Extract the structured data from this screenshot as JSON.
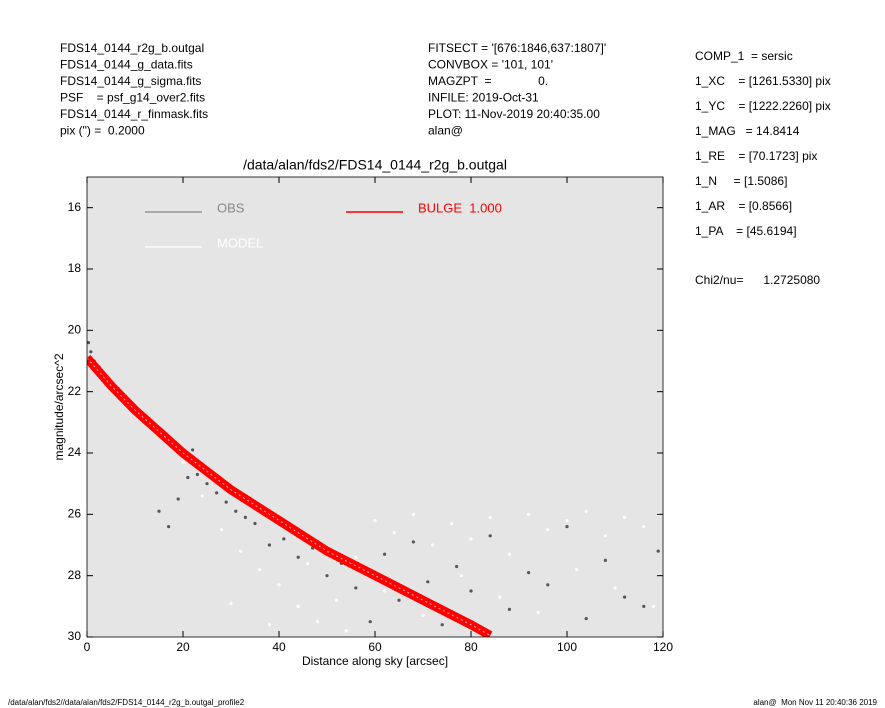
{
  "header": {
    "left": [
      "FDS14_0144_r2g_b.outgal",
      "FDS14_0144_g_data.fits",
      "FDS14_0144_g_sigma.fits",
      "PSF    = psf_g14_over2.fits",
      "FDS14_0144_r_finmask.fits",
      "pix (\") =  0.2000"
    ],
    "middle": [
      "FITSECT = '[676:1846,637:1807]'",
      "CONVBOX = '101, 101'",
      "MAGZPT  =              0.",
      "INFILE: 2019-Oct-31",
      "PLOT: 11-Nov-2019 20:40:35.00",
      "alan@"
    ],
    "right": [
      "COMP_1  = sersic",
      "1_XC    = [1261.5330] pix",
      "1_YC    = [1222.2260] pix",
      "1_MAG   = 14.8414",
      "1_RE    = [70.1723] pix",
      "1_N     = [1.5086]",
      "1_AR    = [0.8566]",
      "1_PA    = [45.6194]"
    ],
    "chi2": "Chi2/nu=      1.2725080"
  },
  "footer": {
    "left": "/data/alan/fds2//data/alan/fds2/FDS14_0144_r2g_b.outgal_profile2",
    "right": "alan@  Mon Nov 11 20:40:36 2019"
  },
  "chart_data": {
    "type": "scatter",
    "title": "/data/alan/fds2/FDS14_0144_r2g_b.outgal",
    "xlabel": "Distance along sky [arcsec]",
    "ylabel": "magnitude/arcsec^2",
    "xlim": [
      0,
      120
    ],
    "xticks": [
      0,
      20,
      40,
      60,
      80,
      100,
      120
    ],
    "ylim": [
      15,
      30
    ],
    "yticks": [
      16,
      18,
      20,
      22,
      24,
      26,
      28,
      30
    ],
    "background": "#e5e5e5",
    "series": [
      {
        "name": "MODEL",
        "color": "#ffffff",
        "x": [
          1,
          3,
          6,
          9,
          12,
          16,
          20,
          24,
          28,
          32,
          36,
          40,
          44,
          48,
          52,
          56,
          60,
          64,
          68,
          72,
          76,
          80,
          84,
          88,
          92,
          96,
          100,
          104,
          108,
          112,
          116,
          119,
          30,
          38,
          46,
          54,
          62,
          70,
          78,
          86,
          94,
          102,
          110,
          118
        ],
        "values": [
          21.0,
          21.5,
          22.0,
          22.5,
          23.0,
          23.6,
          24.3,
          25.4,
          26.5,
          27.2,
          27.8,
          28.3,
          29.0,
          29.5,
          28.8,
          27.4,
          26.2,
          26.6,
          26.0,
          27.0,
          26.3,
          26.8,
          26.1,
          27.3,
          26.0,
          26.5,
          26.2,
          25.9,
          26.7,
          26.1,
          26.4,
          26.0,
          28.9,
          29.6,
          27.6,
          29.8,
          28.5,
          29.3,
          28.0,
          28.7,
          29.2,
          27.8,
          28.4,
          29.0
        ]
      },
      {
        "name": "OBS",
        "color": "#555555",
        "x": [
          0.3,
          0.8,
          1.5,
          2.5,
          3.5,
          5,
          6.5,
          8,
          10,
          12,
          14,
          15,
          16,
          17,
          18,
          19,
          20,
          21,
          22,
          23,
          24,
          25,
          27,
          29,
          31,
          33,
          35,
          38,
          41,
          44,
          47,
          50,
          53,
          56,
          59,
          62,
          65,
          68,
          71,
          74,
          77,
          80,
          84,
          88,
          92,
          96,
          100,
          104,
          108,
          112,
          116,
          119
        ],
        "values": [
          20.4,
          20.7,
          21.0,
          21.2,
          21.4,
          21.7,
          21.9,
          22.2,
          22.5,
          22.8,
          23.1,
          25.9,
          23.4,
          26.4,
          23.7,
          25.5,
          24.0,
          24.8,
          23.9,
          24.7,
          24.4,
          25.0,
          25.3,
          25.6,
          25.9,
          26.1,
          26.3,
          27.0,
          26.8,
          27.4,
          27.1,
          28.0,
          27.6,
          28.4,
          29.5,
          27.3,
          28.8,
          26.9,
          28.2,
          29.6,
          27.7,
          28.5,
          26.7,
          29.1,
          27.9,
          28.3,
          26.4,
          29.4,
          27.5,
          28.7,
          29.0,
          27.2
        ]
      },
      {
        "name": "BULGE  1.000",
        "color": "#ff0000",
        "line": true,
        "x": [
          0,
          5,
          10,
          15,
          20,
          25,
          30,
          35,
          40,
          45,
          50,
          55,
          60,
          65,
          70,
          75,
          80,
          84
        ],
        "values": [
          20.9,
          21.8,
          22.6,
          23.3,
          24.0,
          24.6,
          25.2,
          25.7,
          26.2,
          26.7,
          27.2,
          27.6,
          28.0,
          28.4,
          28.8,
          29.2,
          29.6,
          29.95
        ]
      }
    ]
  }
}
